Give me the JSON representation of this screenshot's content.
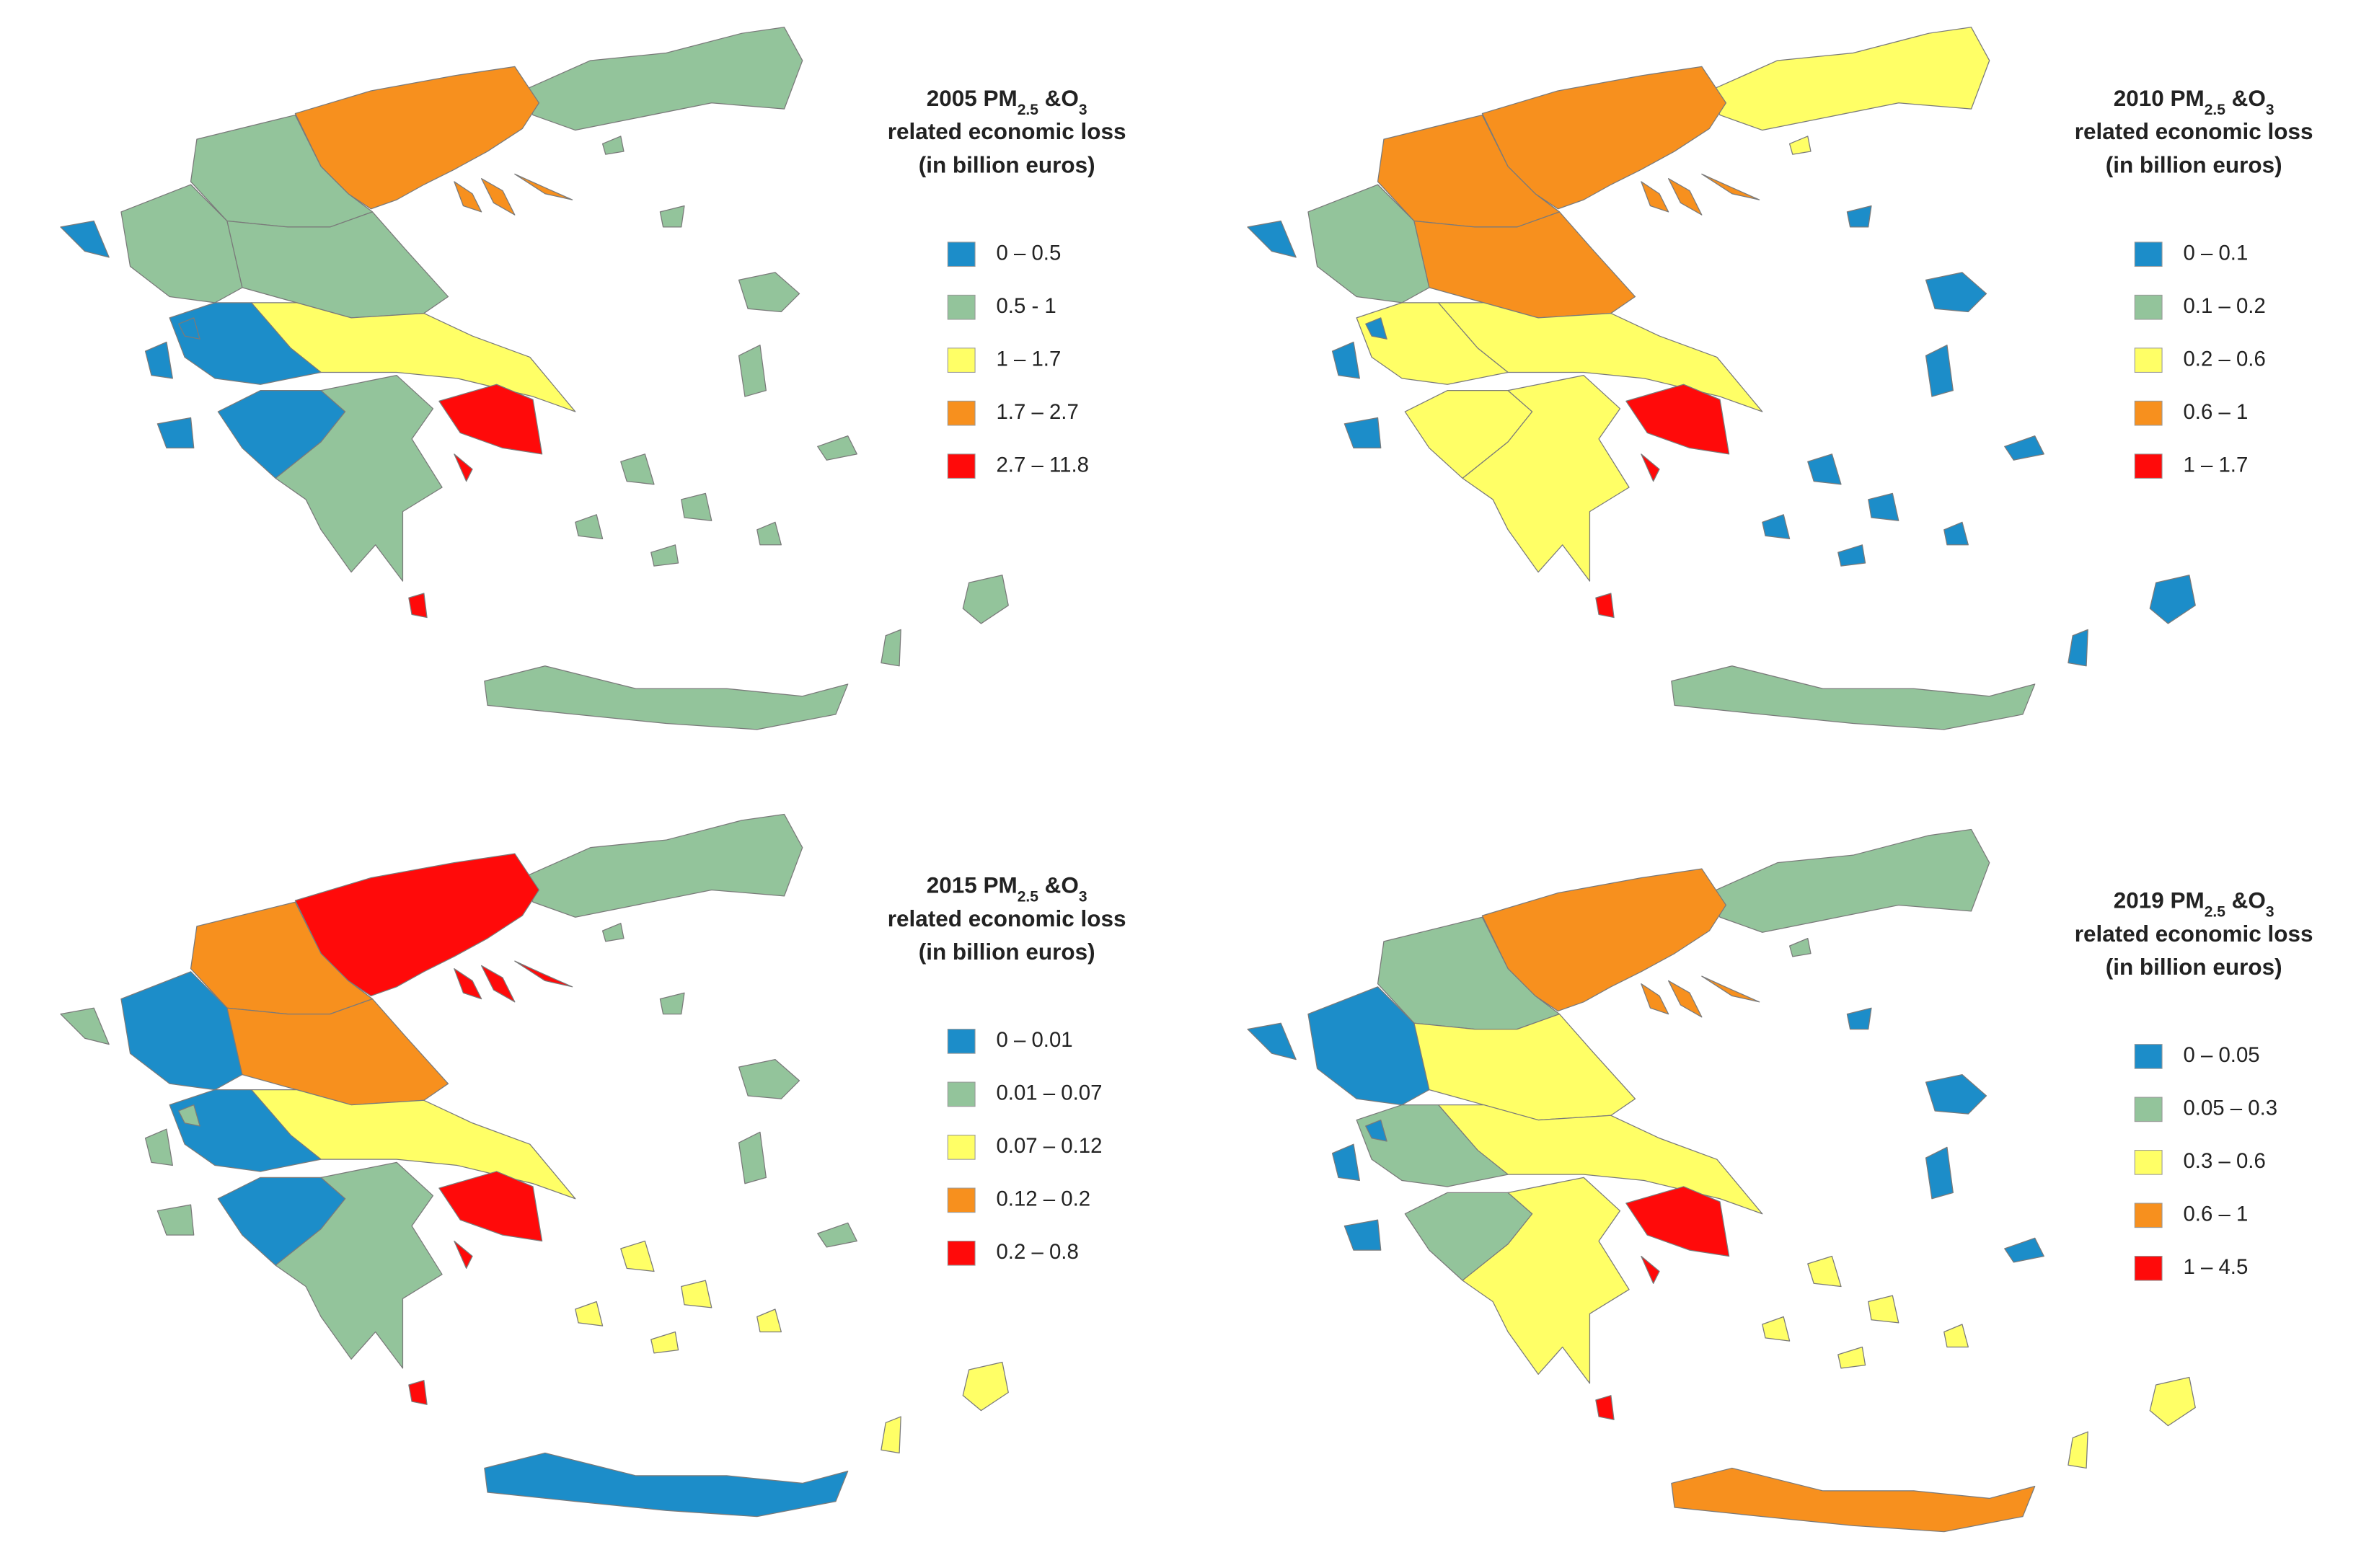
{
  "maps": [
    {
      "title": [
        "2005 PM",
        "2.5",
        " &O",
        "3"
      ],
      "subtitle_lines": [
        "related economic loss",
        "(in billion euros)"
      ],
      "legend": [
        {
          "label": "0 – 0.5",
          "color": "#1c8dc9"
        },
        {
          "label": "0.5 - 1",
          "color": "#93c49b"
        },
        {
          "label": "1 – 1.7",
          "color": "#ffff66"
        },
        {
          "label": "1.7 – 2.7",
          "color": "#f7901e"
        },
        {
          "label": "2.7 – 11.8",
          "color": "#ff0a0a"
        }
      ],
      "fills": [
        1,
        3,
        1,
        1,
        1,
        2,
        0,
        4,
        1,
        0,
        1,
        1,
        1
      ]
    },
    {
      "title": [
        "2010 PM",
        "2.5",
        " &O",
        "3"
      ],
      "subtitle_lines": [
        "related economic loss",
        "(in billion euros)"
      ],
      "legend": [
        {
          "label": "0 – 0.1",
          "color": "#1c8dc9"
        },
        {
          "label": "0.1 – 0.2",
          "color": "#93c49b"
        },
        {
          "label": "0.2 – 0.6",
          "color": "#ffff66"
        },
        {
          "label": "0.6 – 1",
          "color": "#f7901e"
        },
        {
          "label": "1 – 1.7",
          "color": "#ff0a0a"
        }
      ],
      "fills": [
        2,
        3,
        3,
        1,
        3,
        2,
        2,
        4,
        2,
        0,
        0,
        0,
        1
      ]
    },
    {
      "title": [
        "2015 PM",
        "2.5",
        " &O",
        "3"
      ],
      "subtitle_lines": [
        "related economic loss",
        "(in billion euros)"
      ],
      "legend": [
        {
          "label": "0 – 0.01",
          "color": "#1c8dc9"
        },
        {
          "label": "0.01 – 0.07",
          "color": "#93c49b"
        },
        {
          "label": "0.07 – 0.12",
          "color": "#ffff66"
        },
        {
          "label": "0.12 – 0.2",
          "color": "#f7901e"
        },
        {
          "label": "0.2 – 0.8",
          "color": "#ff0a0a"
        }
      ],
      "fills": [
        1,
        4,
        3,
        0,
        3,
        2,
        0,
        4,
        1,
        1,
        1,
        2,
        0
      ]
    },
    {
      "title": [
        "2019 PM",
        "2.5",
        " &O",
        "3"
      ],
      "subtitle_lines": [
        "related economic loss",
        "(in billion euros)"
      ],
      "legend": [
        {
          "label": "0 – 0.05",
          "color": "#1c8dc9"
        },
        {
          "label": "0.05 – 0.3",
          "color": "#93c49b"
        },
        {
          "label": "0.3 – 0.6",
          "color": "#ffff66"
        },
        {
          "label": "0.6 – 1",
          "color": "#f7901e"
        },
        {
          "label": "1 – 4.5",
          "color": "#ff0a0a"
        }
      ],
      "fills": [
        1,
        3,
        1,
        0,
        2,
        2,
        1,
        4,
        2,
        0,
        0,
        2,
        3
      ]
    }
  ]
}
